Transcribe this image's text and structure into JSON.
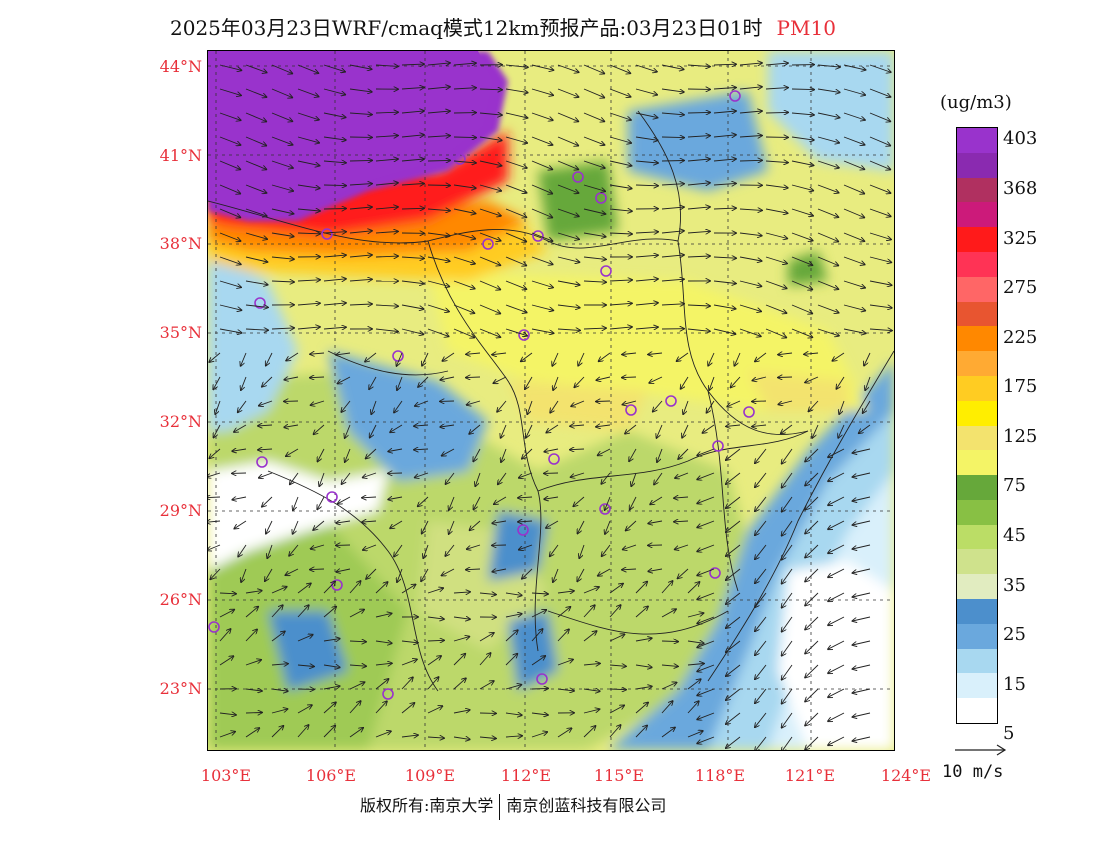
{
  "title": "2025年03月23日WRF/cmaq模式12km预报产品:03月23日01时",
  "pollutant": "PM10",
  "colorbar": {
    "unit": "(ug/m3)",
    "labels": [
      "403",
      "368",
      "325",
      "275",
      "225",
      "175",
      "125",
      "75",
      "45",
      "35",
      "25",
      "15",
      "5"
    ],
    "colors": [
      "#9933cc",
      "#8a2ab0",
      "#b03060",
      "#cc1a7a",
      "#ff1a1a",
      "#ff3355",
      "#ff6666",
      "#e85530",
      "#ff8800",
      "#ffaa33",
      "#ffcc22",
      "#ffee00",
      "#f3e36e",
      "#f4f466",
      "#66a83a",
      "#88c044",
      "#bbdd66",
      "#cfe28c",
      "#e1ecc0",
      "#4c8fcc",
      "#6aa8dd",
      "#a8d8f0",
      "#d9f0fb",
      "#ffffff"
    ]
  },
  "latitudes": [
    "44°N",
    "41°N",
    "38°N",
    "35°N",
    "32°N",
    "29°N",
    "26°N",
    "23°N"
  ],
  "longitudes": [
    "103°E",
    "106°E",
    "109°E",
    "112°E",
    "115°E",
    "118°E",
    "121°E",
    "124°E"
  ],
  "wind_reference": "10 m/s",
  "footer": {
    "left": "版权所有:南京大学",
    "right": "南京创蓝科技有限公司"
  }
}
